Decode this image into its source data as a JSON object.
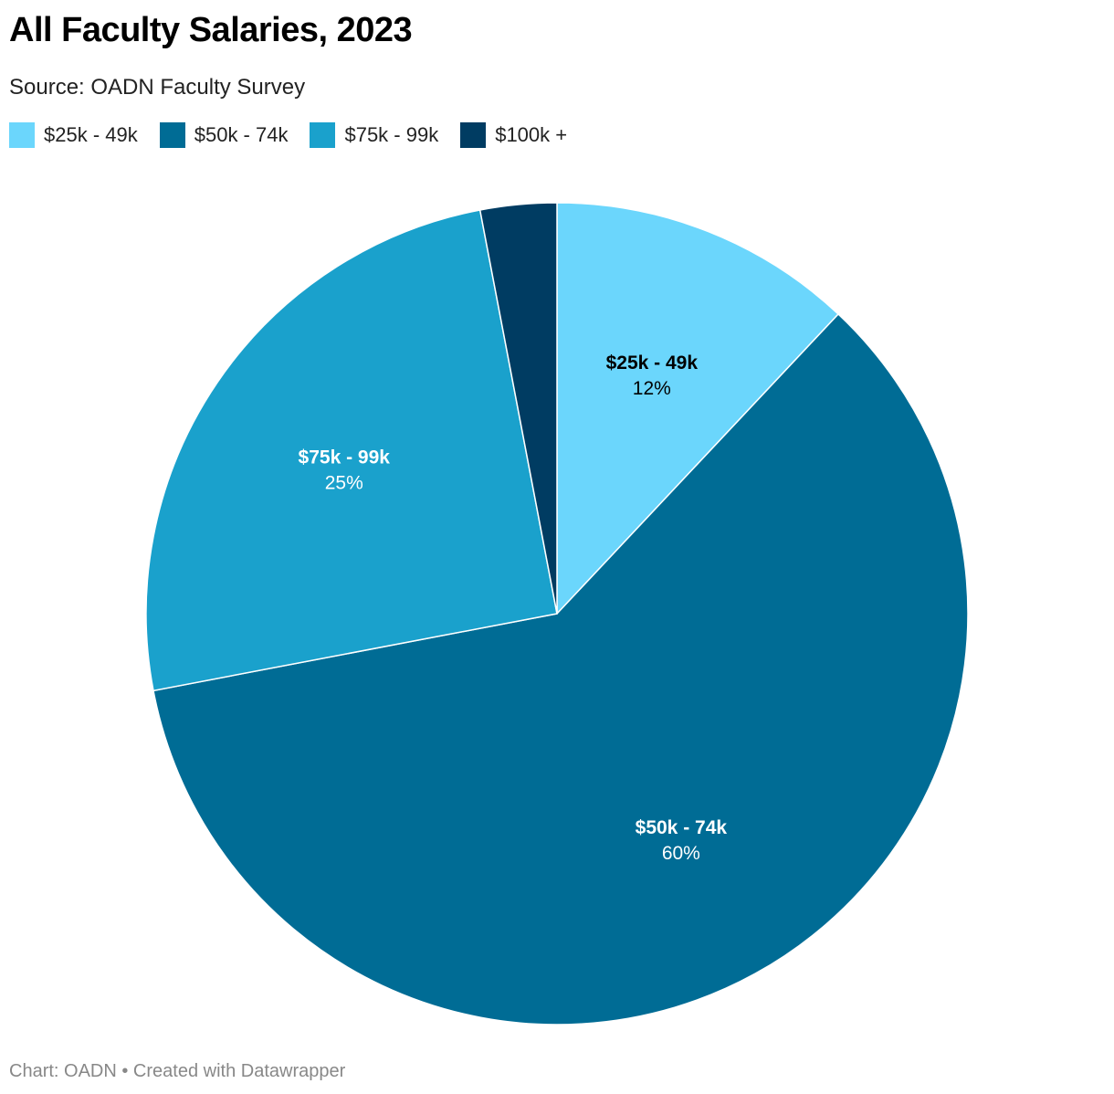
{
  "chart_data": {
    "type": "pie",
    "title": "All Faculty Salaries, 2023",
    "subtitle": "Source: OADN Faculty Survey",
    "legend_placement": "top-left",
    "categories": [
      "$25k - 49k",
      "$50k - 74k",
      "$75k - 99k",
      "$100k +"
    ],
    "values": [
      12,
      60,
      25,
      3
    ],
    "value_labels": [
      "12%",
      "60%",
      "25%",
      ""
    ],
    "show_label": [
      true,
      true,
      true,
      false
    ],
    "colors": [
      "#6bd6fc",
      "#006c95",
      "#1aa1cc",
      "#003c62"
    ],
    "label_colors": [
      "#000000",
      "#ffffff",
      "#ffffff",
      "#ffffff"
    ]
  },
  "footer": "Chart: OADN • Created with Datawrapper"
}
